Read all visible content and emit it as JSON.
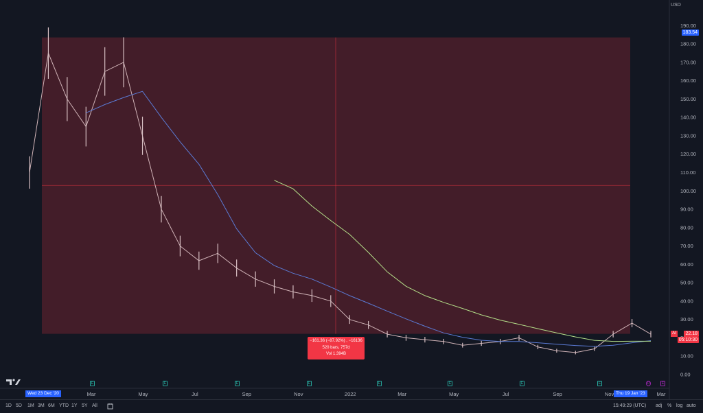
{
  "price_scale": {
    "currency": "USD",
    "ticks": [
      "190.00",
      "180.00",
      "170.00",
      "160.00",
      "150.00",
      "140.00",
      "130.00",
      "120.00",
      "110.00",
      "100.00",
      "90.00",
      "80.00",
      "70.00",
      "60.00",
      "50.00",
      "40.00",
      "30.00",
      "20.00",
      "10.00",
      "0.00"
    ],
    "high_label": "183.54",
    "last_price_label": "22.18",
    "countdown_label": "05:10:30",
    "symbol_badge": "AI"
  },
  "time_scale": {
    "ticks": [
      "Mar",
      "May",
      "Jul",
      "Sep",
      "Nov",
      "2022",
      "Mar",
      "May",
      "Jul",
      "Sep",
      "Nov",
      "Mar"
    ],
    "start_flag": "Wed 23 Dec '20",
    "end_flag": "Thu 19 Jan '23"
  },
  "measure": {
    "line1": "−161.36 (−87.92%) , −16136",
    "line2": "520 bars, 757d",
    "line3": "Vol 1.394B"
  },
  "events": {
    "earnings_label": "E",
    "dividend_label": "D"
  },
  "bottom_bar": {
    "ranges": [
      "1D",
      "5D",
      "1M",
      "3M",
      "6M",
      "YTD",
      "1Y",
      "5Y",
      "All"
    ],
    "time": "15:49:29 (UTC)",
    "options": [
      "adj",
      "%",
      "log",
      "auto"
    ]
  },
  "colors": {
    "background": "#131722",
    "measure_fill": "#f23645",
    "ma_fast": "#5b7bd5",
    "ma_slow": "#b5e08a",
    "accent": "#2962ff"
  },
  "chart_data": {
    "type": "line",
    "ylim": [
      0,
      190
    ],
    "x_range": [
      "2020-12-23",
      "2023-01-19"
    ],
    "series": [
      {
        "values": [
          110,
          175,
          150,
          135,
          165,
          170,
          130,
          90,
          70,
          62,
          66,
          58,
          52,
          48,
          45,
          43,
          40,
          30,
          27,
          22,
          20,
          19,
          18,
          16,
          17,
          18,
          20,
          15,
          13,
          12,
          14,
          22,
          28,
          22
        ]
      }
    ]
  }
}
